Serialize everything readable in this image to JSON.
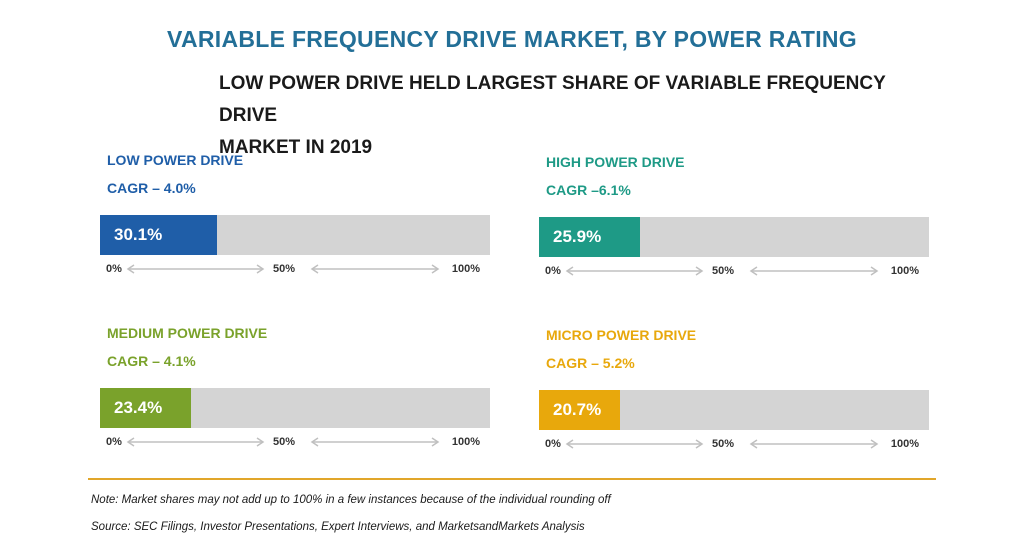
{
  "title": "VARIABLE FREQUENCY DRIVE MARKET, BY POWER RATING",
  "subtitle_line1": "LOW POWER DRIVE HELD LARGEST SHARE OF VARIABLE FREQUENCY DRIVE",
  "subtitle_line2": "MARKET IN 2019",
  "chart_data": {
    "type": "bar",
    "title": "VARIABLE FREQUENCY DRIVE MARKET, BY POWER RATING",
    "subtitle": "LOW POWER DRIVE HELD LARGEST SHARE OF VARIABLE FREQUENCY DRIVE MARKET IN 2019",
    "xlim": [
      0,
      100
    ],
    "x_ticks": [
      "0%",
      "50%",
      "100%"
    ],
    "categories": [
      "LOW POWER DRIVE",
      "HIGH POWER DRIVE",
      "MEDIUM POWER DRIVE",
      "MICRO POWER DRIVE"
    ],
    "values": [
      30.1,
      25.9,
      23.4,
      20.7
    ],
    "unit": "%",
    "items": [
      {
        "name": "LOW POWER DRIVE",
        "cagr": "CAGR – 4.0%",
        "value": 30.1,
        "label": "30.1%",
        "color": "#1f5ea8"
      },
      {
        "name": "HIGH POWER DRIVE",
        "cagr": "CAGR –6.1%",
        "value": 25.9,
        "label": "25.9%",
        "color": "#1e9a86"
      },
      {
        "name": "MEDIUM POWER DRIVE",
        "cagr": "CAGR – 4.1%",
        "value": 23.4,
        "label": "23.4%",
        "color": "#7aa22b"
      },
      {
        "name": "MICRO POWER DRIVE",
        "cagr": "CAGR – 5.2%",
        "value": 20.7,
        "label": "20.7%",
        "color": "#e8a80c"
      }
    ]
  },
  "notes": {
    "note": "Note: Market shares may not add up to 100% in a few instances because of the individual rounding off",
    "source": "Source: SEC Filings, Investor Presentations, Expert Interviews, and MarketsandMarkets Analysis"
  },
  "colors": {
    "title": "#236f97",
    "track": "#d4d4d4",
    "divider": "#e1a62a",
    "arrow": "#c0c0c0"
  }
}
